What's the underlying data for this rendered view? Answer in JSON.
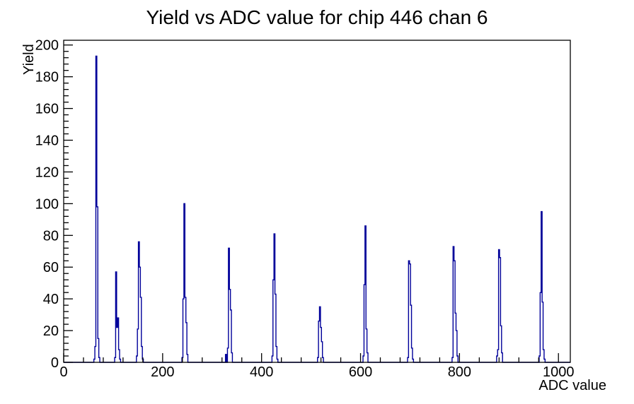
{
  "figure": {
    "background": "#ffffff"
  },
  "chart_data": {
    "type": "bar",
    "subtype": "histogram-step-outline",
    "title": "Yield vs ADC value for chip 446 chan 6",
    "xlabel": "ADC value",
    "ylabel": "Yield",
    "xlim": [
      0,
      1024
    ],
    "ylim": [
      0,
      203
    ],
    "x_major_ticks": [
      0,
      200,
      400,
      600,
      800,
      1000
    ],
    "x_minor_step": 40,
    "y_major_step": 20,
    "y_max_label": 200,
    "y_minor_step": 4,
    "grid": false,
    "legend": false,
    "line_color": "#00009a",
    "axis_color": "#000000",
    "bin_width_adc": 2,
    "bins": [
      [
        61,
        2
      ],
      [
        63,
        10
      ],
      [
        65,
        193
      ],
      [
        67,
        98
      ],
      [
        69,
        15
      ],
      [
        71,
        3
      ],
      [
        103,
        3
      ],
      [
        105,
        57
      ],
      [
        107,
        22
      ],
      [
        109,
        28
      ],
      [
        111,
        8
      ],
      [
        113,
        2
      ],
      [
        147,
        4
      ],
      [
        149,
        21
      ],
      [
        151,
        76
      ],
      [
        153,
        60
      ],
      [
        155,
        41
      ],
      [
        157,
        10
      ],
      [
        159,
        2
      ],
      [
        239,
        3
      ],
      [
        241,
        40
      ],
      [
        243,
        100
      ],
      [
        245,
        41
      ],
      [
        247,
        25
      ],
      [
        249,
        5
      ],
      [
        327,
        5
      ],
      [
        331,
        9
      ],
      [
        333,
        72
      ],
      [
        335,
        46
      ],
      [
        337,
        33
      ],
      [
        339,
        6
      ],
      [
        421,
        4
      ],
      [
        423,
        52
      ],
      [
        425,
        81
      ],
      [
        427,
        43
      ],
      [
        429,
        10
      ],
      [
        431,
        2
      ],
      [
        513,
        3
      ],
      [
        515,
        26
      ],
      [
        517,
        35
      ],
      [
        519,
        22
      ],
      [
        521,
        13
      ],
      [
        523,
        3
      ],
      [
        605,
        4
      ],
      [
        607,
        49
      ],
      [
        609,
        86
      ],
      [
        611,
        21
      ],
      [
        613,
        6
      ],
      [
        695,
        3
      ],
      [
        697,
        64
      ],
      [
        699,
        62
      ],
      [
        701,
        36
      ],
      [
        703,
        9
      ],
      [
        705,
        2
      ],
      [
        785,
        3
      ],
      [
        787,
        73
      ],
      [
        789,
        64
      ],
      [
        791,
        31
      ],
      [
        793,
        20
      ],
      [
        795,
        4
      ],
      [
        875,
        4
      ],
      [
        877,
        8
      ],
      [
        879,
        71
      ],
      [
        881,
        66
      ],
      [
        883,
        23
      ],
      [
        885,
        6
      ],
      [
        961,
        4
      ],
      [
        963,
        44
      ],
      [
        965,
        95
      ],
      [
        967,
        38
      ],
      [
        969,
        8
      ],
      [
        971,
        2
      ]
    ],
    "peak_summary": [
      {
        "adc": 65,
        "yield": 193
      },
      {
        "adc": 105,
        "yield": 57
      },
      {
        "adc": 151,
        "yield": 76
      },
      {
        "adc": 243,
        "yield": 100
      },
      {
        "adc": 333,
        "yield": 72
      },
      {
        "adc": 425,
        "yield": 81
      },
      {
        "adc": 517,
        "yield": 35
      },
      {
        "adc": 609,
        "yield": 86
      },
      {
        "adc": 697,
        "yield": 64
      },
      {
        "adc": 787,
        "yield": 73
      },
      {
        "adc": 879,
        "yield": 71
      },
      {
        "adc": 965,
        "yield": 95
      }
    ]
  }
}
